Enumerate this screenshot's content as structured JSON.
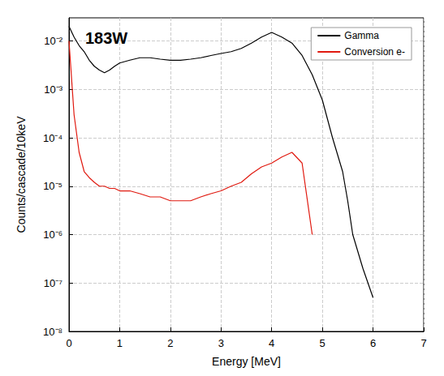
{
  "chart_data": {
    "type": "line",
    "title": "183W",
    "x_label": "Energy [MeV]",
    "y_label": "Counts/cascade/10keV",
    "log": "y",
    "grid": true,
    "legend": "top-right",
    "x": [
      0.0,
      0.1,
      0.2,
      0.3,
      0.4,
      0.5,
      0.6,
      0.7,
      0.8,
      0.9,
      1.0,
      1.2,
      1.4,
      1.6,
      1.8,
      2.0,
      2.2,
      2.4,
      2.6,
      2.8,
      3.0,
      3.2,
      3.4,
      3.6,
      3.8,
      4.0,
      4.2,
      4.4,
      4.6,
      4.8,
      5.0,
      5.2,
      5.4,
      5.5,
      5.6,
      5.8,
      6.0
    ],
    "series": [
      {
        "name": "Gamma",
        "color": "#000000",
        "values": [
          0.02,
          0.012,
          0.008,
          0.006,
          0.004,
          0.003,
          0.0025,
          0.0022,
          0.0025,
          0.003,
          0.0035,
          0.004,
          0.0045,
          0.0045,
          0.0042,
          0.004,
          0.004,
          0.0042,
          0.0045,
          0.005,
          0.0055,
          0.006,
          0.007,
          0.009,
          0.012,
          0.015,
          0.012,
          0.009,
          0.005,
          0.002,
          0.0006,
          0.0001,
          2e-05,
          5e-06,
          1e-06,
          2e-07,
          5e-08
        ]
      },
      {
        "name": "Conversion e-",
        "color": "#e0190f",
        "values": [
          0.01,
          0.0003,
          5e-05,
          2e-05,
          1.5e-05,
          1.2e-05,
          1e-05,
          1e-05,
          9e-06,
          9e-06,
          8e-06,
          8e-06,
          7e-06,
          6e-06,
          6e-06,
          5e-06,
          5e-06,
          5e-06,
          6e-06,
          7e-06,
          8e-06,
          1e-05,
          1.2e-05,
          1.8e-05,
          2.5e-05,
          3e-05,
          4e-05,
          5e-05,
          3e-05,
          1e-06,
          null,
          null,
          null,
          null,
          null,
          null,
          null
        ]
      }
    ],
    "xlim": [
      0,
      7
    ],
    "xticks": [
      0,
      1,
      2,
      3,
      4,
      5,
      6,
      7
    ],
    "ylim": [
      1e-08,
      0.03
    ],
    "yticks": [
      {
        "value": 1e-08,
        "label": "10⁻⁸"
      },
      {
        "value": 1e-07,
        "label": "10⁻⁷"
      },
      {
        "value": 1e-06,
        "label": "10⁻⁶"
      },
      {
        "value": 1e-05,
        "label": "10⁻⁵"
      },
      {
        "value": 0.0001,
        "label": "10⁻⁴"
      },
      {
        "value": 0.001,
        "label": "10⁻³"
      },
      {
        "value": 0.01,
        "label": "10⁻²"
      }
    ]
  }
}
